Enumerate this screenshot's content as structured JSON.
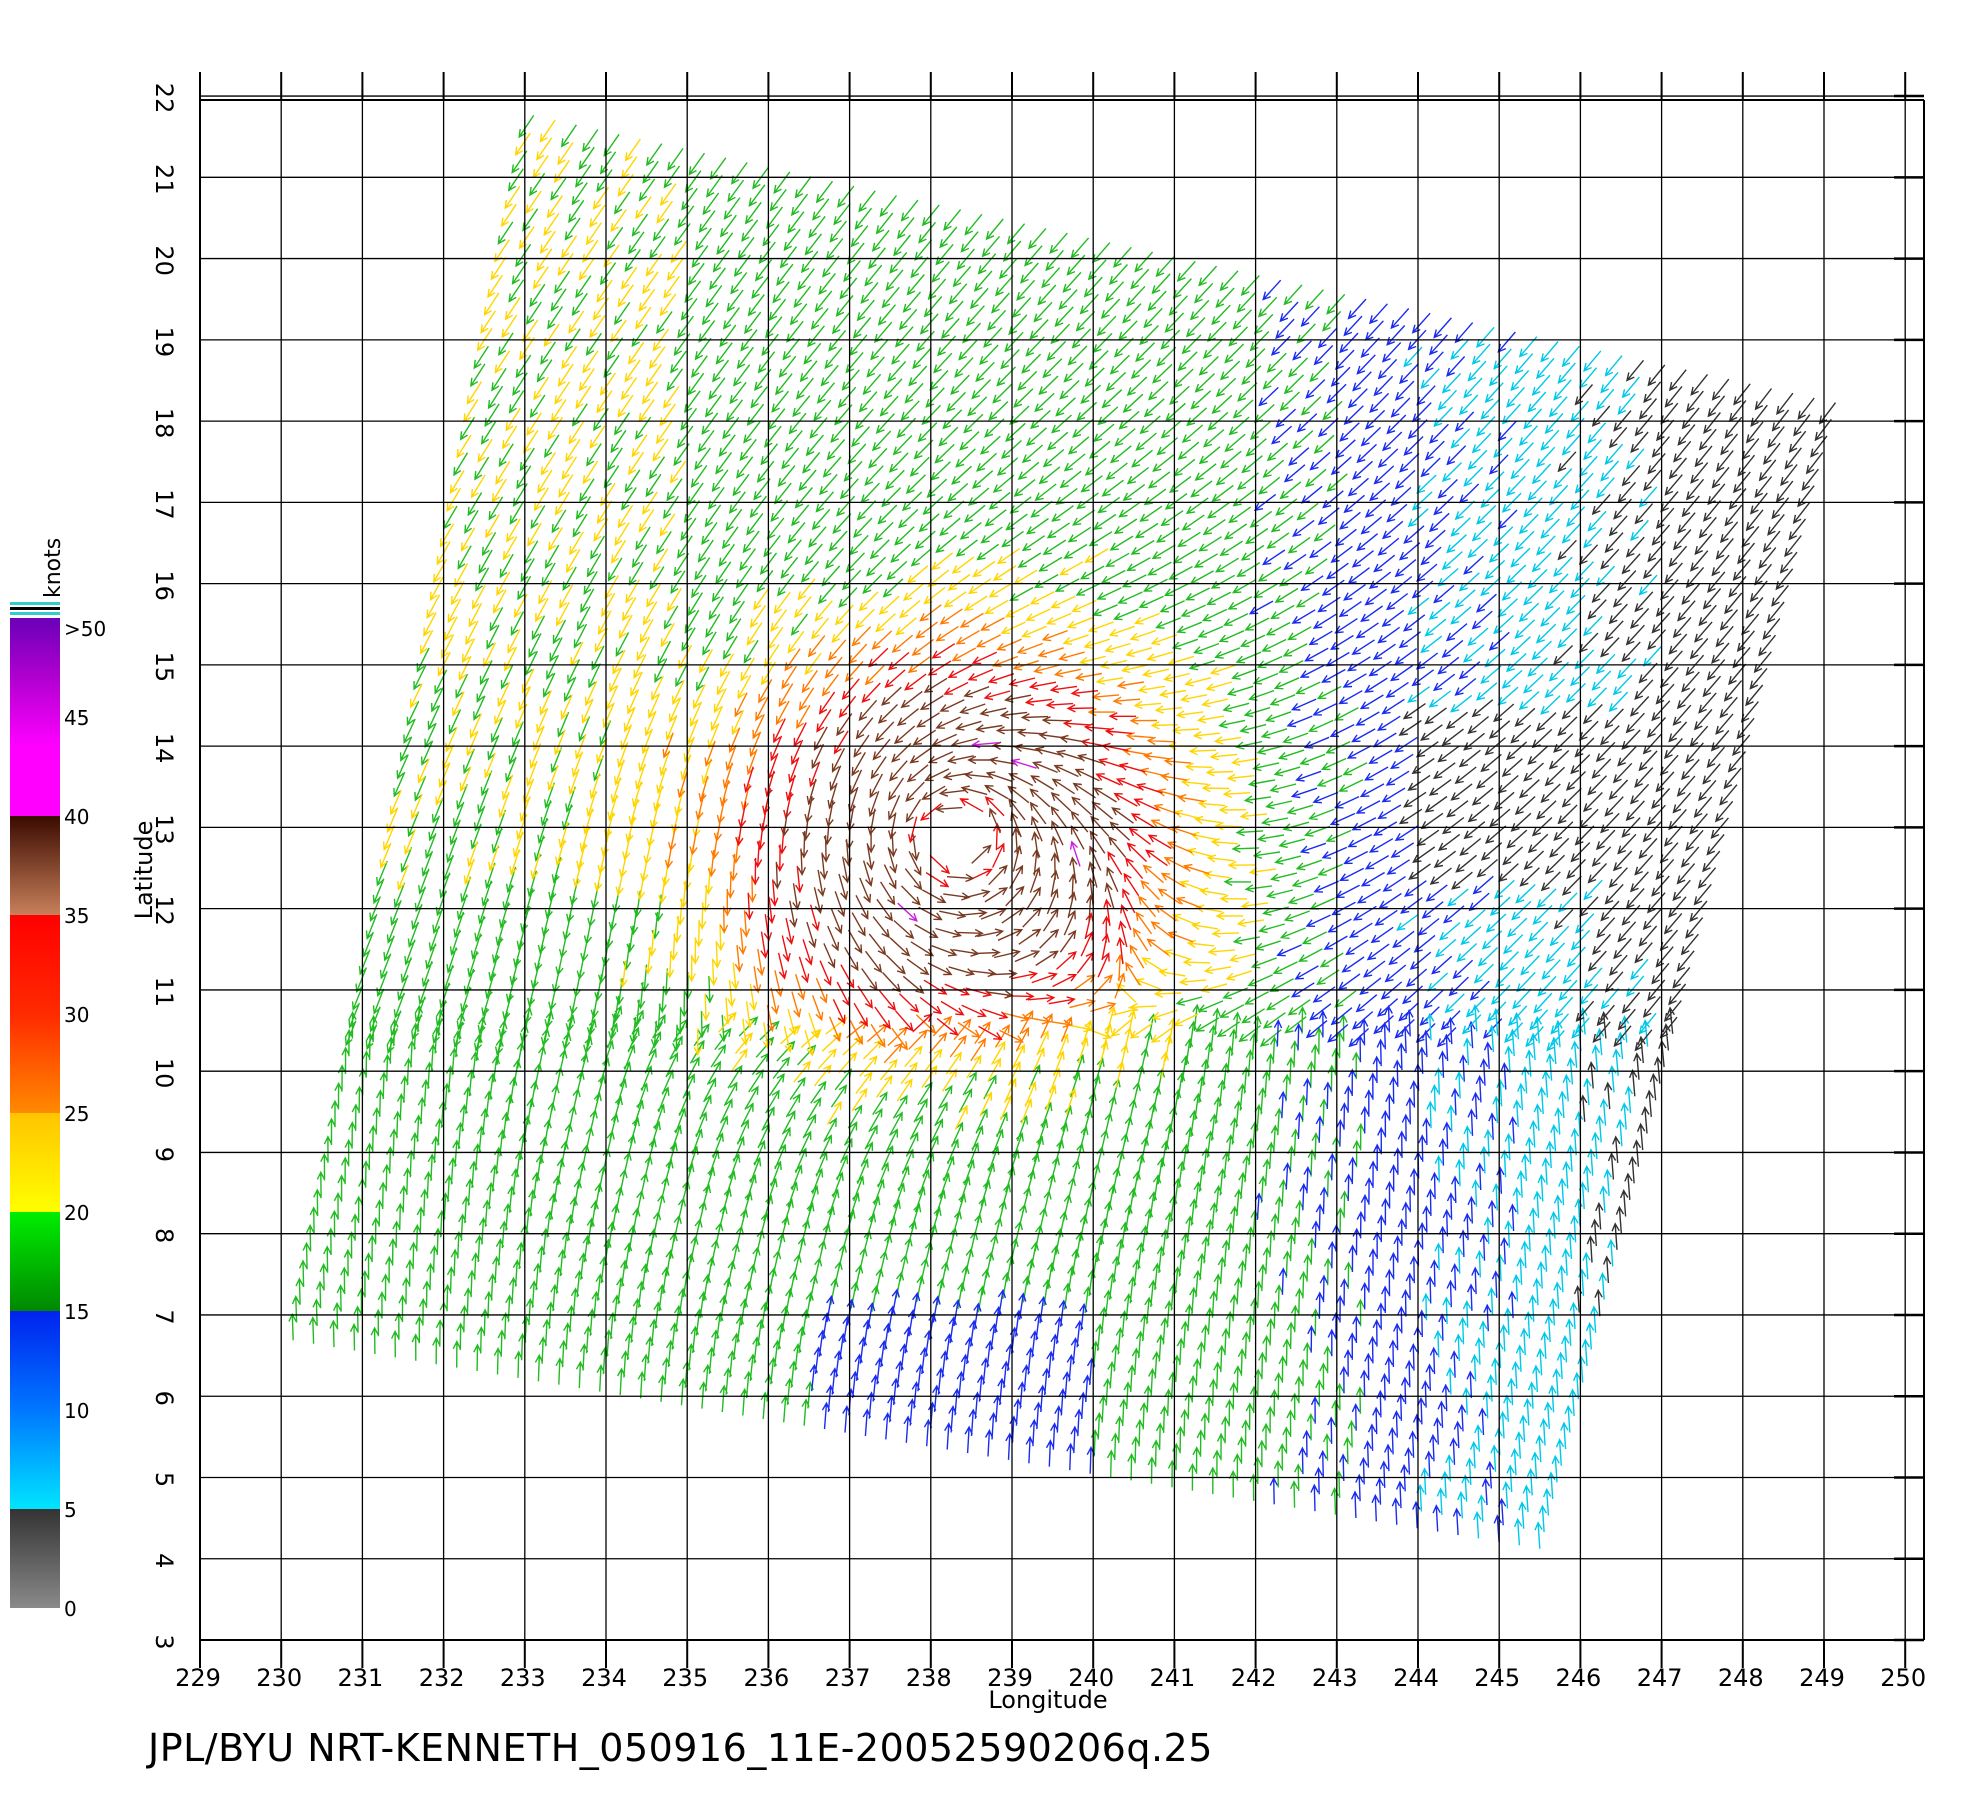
{
  "map": {
    "lon_ticks": [
      "229",
      "230",
      "231",
      "232",
      "233",
      "234",
      "235",
      "236",
      "237",
      "238",
      "239",
      "240",
      "241",
      "242",
      "243",
      "244",
      "245",
      "246",
      "247",
      "248",
      "249",
      "250"
    ],
    "lat_ticks": [
      "3",
      "4",
      "5",
      "6",
      "7",
      "8",
      "9",
      "10",
      "11",
      "12",
      "13",
      "14",
      "15",
      "16",
      "17",
      "18",
      "19",
      "20",
      "21",
      "22"
    ],
    "xlabel": "Longitude",
    "ylabel": "Latitude",
    "lon_range": [
      229,
      250
    ],
    "lat_range": [
      3,
      22
    ],
    "storm_center": {
      "lon": 238.3,
      "lat": 12.9
    },
    "swath_corners": [
      [
        233.0,
        21.9
      ],
      [
        249.3,
        18.3
      ],
      [
        245.6,
        4.0
      ],
      [
        230.0,
        6.6
      ]
    ]
  },
  "colorbar": {
    "unit": "knots",
    "labels": [
      ">50",
      "45",
      "40",
      "35",
      "30",
      "25",
      "20",
      "15",
      "10",
      "5",
      "0"
    ],
    "colors": {
      "0-5": [
        "#7a7a7a",
        "#333333"
      ],
      "5-10": [
        "#00e5ff",
        "#0077ff"
      ],
      "10-15": [
        "#0057ff",
        "#0022ee"
      ],
      "15-20": [
        "#008800",
        "#00ee00"
      ],
      "20-25": [
        "#ffff00",
        "#ffc400"
      ],
      "25-30": [
        "#ff8800",
        "#ff3300"
      ],
      "30-35": [
        "#ff2020",
        "#ff0000"
      ],
      "35-40": [
        "#c8805a",
        "#3a0a00"
      ],
      "40-45": [
        "#ff00ff",
        "#e000e0"
      ],
      "45-50": [
        "#c000d0",
        "#6a00b8"
      ]
    }
  },
  "footer": {
    "text": "JPL/BYU  NRT-KENNETH_050916_11E-20052590206q.25"
  }
}
